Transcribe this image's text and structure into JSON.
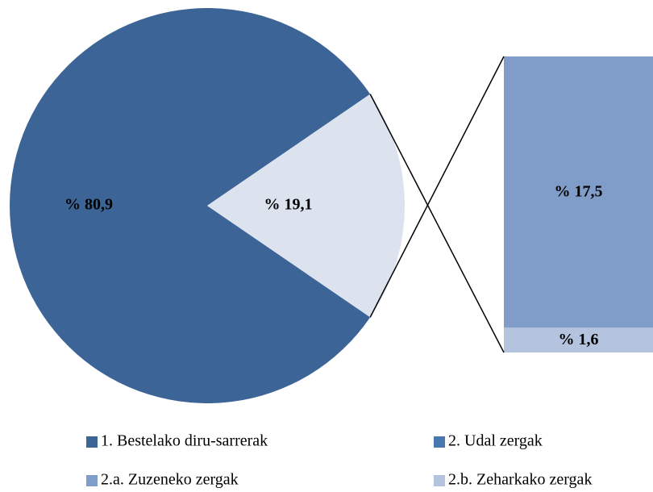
{
  "chart_data": {
    "type": "pie-of-bar",
    "pie": {
      "categories": [
        "1. Bestelako diru-sarrerak",
        "2. Udal zergak"
      ],
      "values": [
        80.9,
        19.1
      ],
      "value_labels": [
        "% 80,9",
        "% 19,1"
      ],
      "colors": [
        "#3c6496",
        "#dce3ef"
      ]
    },
    "bar": {
      "categories": [
        "2.a. Zuzeneko zergak",
        "2.b. Zeharkako zergak"
      ],
      "values": [
        17.5,
        1.6
      ],
      "value_labels": [
        "% 17,5",
        "% 1,6"
      ],
      "colors": [
        "#7f9dc8",
        "#b4c3de"
      ]
    },
    "legend_colors": [
      "#3c6496",
      "#4a76b0",
      "#7f9dc8",
      "#b4c3de"
    ]
  }
}
